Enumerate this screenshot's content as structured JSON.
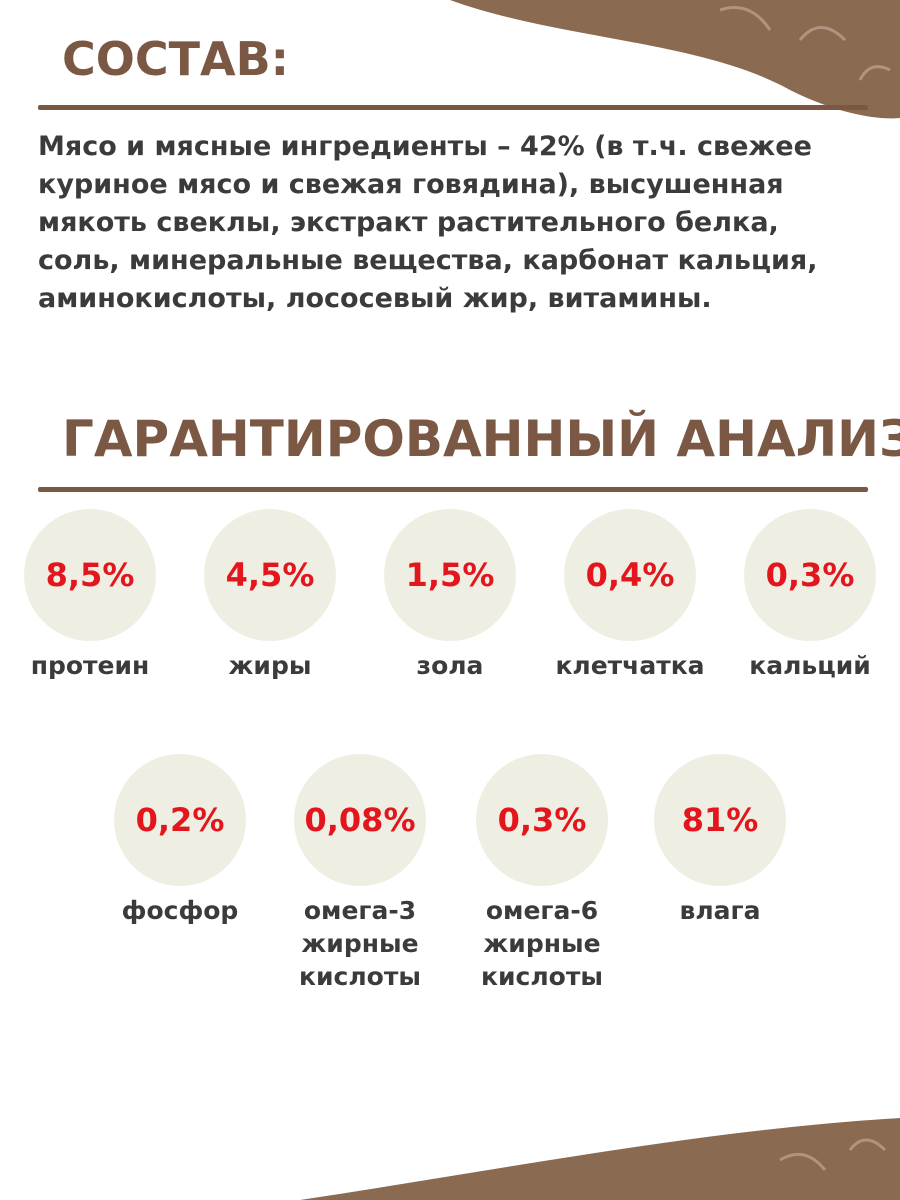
{
  "composition": {
    "title": "СОСТАВ:",
    "lines": [
      "Мясо и мясные ингредиенты – 42% (в т.ч. свежее",
      "куриное мясо и свежая говядина), высушенная",
      "мякоть свеклы, экстракт растительного белка,",
      "соль, минеральные вещества, карбонат кальция,",
      "аминокислоты, лососевый жир, витамины."
    ]
  },
  "analysis": {
    "title": "ГАРАНТИРОВАННЫЙ АНАЛИЗ:",
    "items": [
      {
        "value": "8,5%",
        "label_lines": [
          "протеин"
        ]
      },
      {
        "value": "4,5%",
        "label_lines": [
          "жиры"
        ]
      },
      {
        "value": "1,5%",
        "label_lines": [
          "зола"
        ]
      },
      {
        "value": "0,4%",
        "label_lines": [
          "клетчатка"
        ]
      },
      {
        "value": "0,3%",
        "label_lines": [
          "кальций"
        ]
      },
      {
        "value": "0,2%",
        "label_lines": [
          "фосфор"
        ]
      },
      {
        "value": "0,08%",
        "label_lines": [
          "омега-3",
          "жирные",
          "кислоты"
        ]
      },
      {
        "value": "0,3%",
        "label_lines": [
          "омега-6",
          "жирные",
          "кислоты"
        ]
      },
      {
        "value": "81%",
        "label_lines": [
          "влага"
        ]
      }
    ]
  }
}
